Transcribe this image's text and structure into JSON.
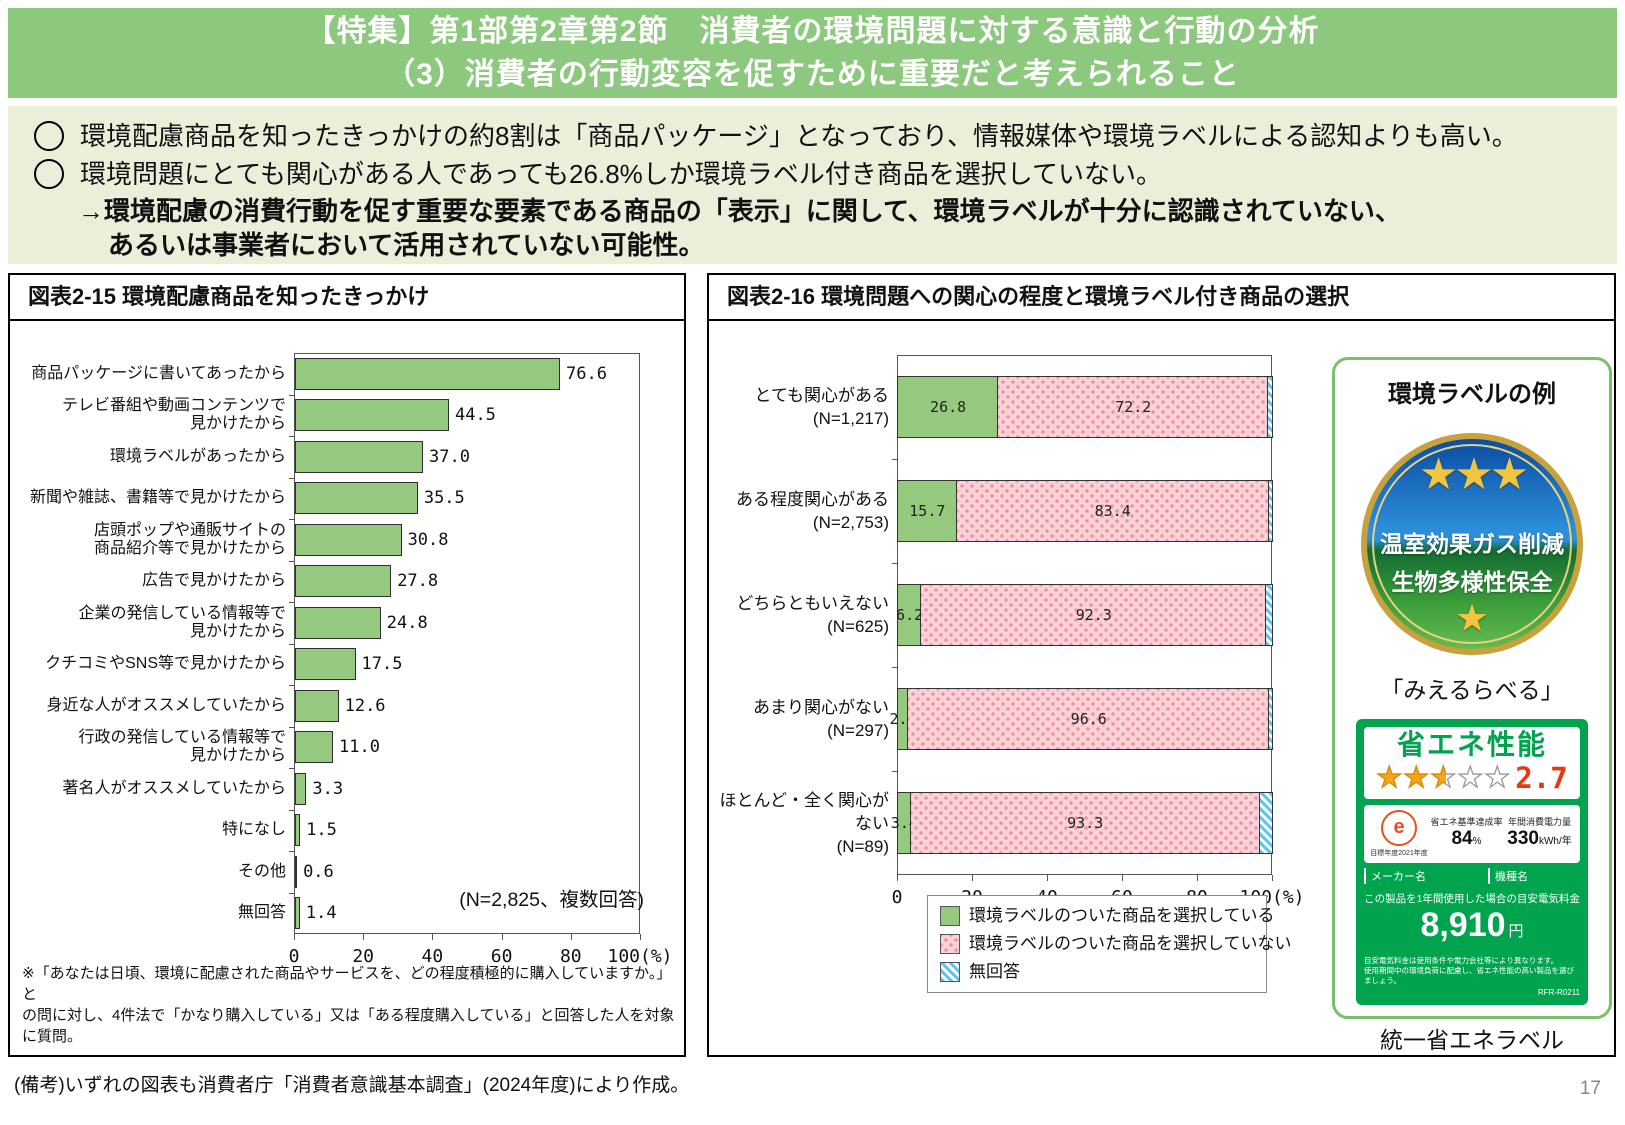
{
  "colors": {
    "header_green": "#8CC87D",
    "summary_bg": "#EAEFD9",
    "bar_green": "#94C97F",
    "not_selected_pink_bg": "#F9D2D8",
    "not_selected_pink_dot": "#F08DA0",
    "no_answer_blue": "#5FC6EF",
    "energy_label_green": "#00A44F",
    "star_gold": "#F5A51D",
    "score_red": "#E8380D"
  },
  "header": {
    "title_line1": "【特集】第1部第2章第2節　消費者の環境問題に対する意識と行動の分析",
    "title_line2": "（3）消費者の行動変容を促すために重要だと考えられること"
  },
  "summary": {
    "bullet1": "環境配慮商品を知ったきっかけの約8割は「商品パッケージ」となっており、情報媒体や環境ラベルによる認知よりも高い。",
    "bullet2": "環境問題にとても関心がある人であっても26.8%しか環境ラベル付き商品を選択していない。",
    "arrow_line1": "→環境配慮の消費行動を促す重要な要素である商品の「表示」に関して、環境ラベルが十分に認識されていない、",
    "arrow_line2": "あるいは事業者において活用されていない可能性。"
  },
  "left_panel": {
    "title": "図表2-15 環境配慮商品を知ったきっかけ",
    "footnote_line1": "※「あなたは日頃、環境に配慮された商品やサービスを、どの程度積極的に購入していますか。」と",
    "footnote_line2": "の問に対し、4件法で「かなり購入している」又は「ある程度購入している」と回答した人を対象に質問。"
  },
  "right_panel": {
    "title": "図表2-16  環境問題への関心の程度と環境ラベル付き商品の選択",
    "example_box": {
      "title": "環境ラベルの例",
      "mieru_label": {
        "badge_stars_top": "★★★",
        "badge_text_top": "温室効果ガス削減",
        "badge_text_bottom": "生物多様性保全",
        "badge_star_bottom": "★",
        "caption": "「みえるらべる」"
      },
      "energy_label": {
        "heading": "省エネ性能",
        "stars": "★★★★★",
        "star_rating": 2.7,
        "score": "2.7",
        "e_mark": "e",
        "e_mark_caption": "目標年度2021年度",
        "achievement_label": "省エネ基準達成率",
        "achievement_value": "84",
        "achievement_unit": "%",
        "consumption_label": "年間消費電力量",
        "consumption_value": "330",
        "consumption_unit": "kWh/年",
        "maker_label": "メーカー名",
        "model_label": "機種名",
        "cost_caption": "この製品を1年間使用した場合の目安電気料金",
        "cost_value": "8,910",
        "cost_unit": "円",
        "fine_print_line1": "目安電気料金は使用条件や電力会社等により異なります。",
        "fine_print_line2": "使用期間中の環境負荷に配慮し、省エネ性能の高い製品を選びましょう。",
        "code": "RFR-R0211",
        "caption": "統一省エネラベル"
      }
    }
  },
  "footer": {
    "note": "(備考)いずれの図表も消費者庁「消費者意識基本調査」(2024年度)により作成。",
    "page_number": "17"
  },
  "chart_data": [
    {
      "id": "fig2-15",
      "type": "bar",
      "orientation": "horizontal",
      "title": "図表2-15 環境配慮商品を知ったきっかけ",
      "categories": [
        "商品パッケージに書いてあったから",
        "テレビ番組や動画コンテンツで見かけたから",
        "環境ラベルがあったから",
        "新聞や雑誌、書籍等で見かけたから",
        "店頭ポップや通販サイトの商品紹介等で見かけたから",
        "広告で見かけたから",
        "企業の発信している情報等で見かけたから",
        "クチコミやSNS等で見かけたから",
        "身近な人がオススメしていたから",
        "行政の発信している情報等で見かけたから",
        "著名人がオススメしていたから",
        "特になし",
        "その他",
        "無回答"
      ],
      "category_lines": [
        [
          "商品パッケージに書いてあったから"
        ],
        [
          "テレビ番組や動画コンテンツで",
          "見かけたから"
        ],
        [
          "環境ラベルがあったから"
        ],
        [
          "新聞や雑誌、書籍等で見かけたから"
        ],
        [
          "店頭ポップや通販サイトの",
          "商品紹介等で見かけたから"
        ],
        [
          "広告で見かけたから"
        ],
        [
          "企業の発信している情報等で",
          "見かけたから"
        ],
        [
          "クチコミやSNS等で見かけたから"
        ],
        [
          "身近な人がオススメしていたから"
        ],
        [
          "行政の発信している情報等で",
          "見かけたから"
        ],
        [
          "著名人がオススメしていたから"
        ],
        [
          "特になし"
        ],
        [
          "その他"
        ],
        [
          "無回答"
        ]
      ],
      "values": [
        76.6,
        44.5,
        37.0,
        35.5,
        30.8,
        27.8,
        24.8,
        17.5,
        12.6,
        11.0,
        3.3,
        1.5,
        0.6,
        1.4
      ],
      "value_labels": [
        "76.6",
        "44.5",
        "37.0",
        "35.5",
        "30.8",
        "27.8",
        "24.8",
        "17.5",
        "12.6",
        "11.0",
        "3.3",
        "1.5",
        "0.6",
        "1.4"
      ],
      "xlim": [
        0,
        100
      ],
      "x_ticks": [
        0,
        20,
        40,
        60,
        80,
        100
      ],
      "x_unit": "(%)",
      "sample_note": "(N=2,825、複数回答)",
      "grid": false,
      "bar_color": "#94C97F"
    },
    {
      "id": "fig2-16",
      "type": "stacked-bar",
      "orientation": "horizontal",
      "title": "図表2-16  環境問題への関心の程度と環境ラベル付き商品の選択",
      "categories": [
        "とても関心がある",
        "ある程度関心がある",
        "どちらともいえない",
        "あまり関心がない",
        "ほとんど・全く関心がない"
      ],
      "category_n": [
        "(N=1,217)",
        "(N=2,753)",
        "(N=625)",
        "(N=297)",
        "(N=89)"
      ],
      "series": [
        {
          "name": "環境ラベルのついた商品を選択している",
          "values": [
            26.8,
            15.7,
            6.2,
            2.7,
            3.4
          ],
          "labels": [
            "26.8",
            "15.7",
            "6.2",
            "2.7",
            "3.4"
          ],
          "style": "green"
        },
        {
          "name": "環境ラベルのついた商品を選択していない",
          "values": [
            72.2,
            83.4,
            92.3,
            96.6,
            93.3
          ],
          "labels": [
            "72.2",
            "83.4",
            "92.3",
            "96.6",
            "93.3"
          ],
          "style": "pink-dots"
        },
        {
          "name": "無回答",
          "values": [
            1.0,
            0.9,
            1.5,
            0.7,
            3.3
          ],
          "labels": [
            "",
            "",
            "",
            "",
            ""
          ],
          "style": "blue-hatch"
        }
      ],
      "xlim": [
        0,
        100
      ],
      "x_ticks": [
        0,
        20,
        40,
        60,
        80,
        100
      ],
      "x_unit": "(%)",
      "grid": false,
      "legend_position": "bottom"
    }
  ]
}
